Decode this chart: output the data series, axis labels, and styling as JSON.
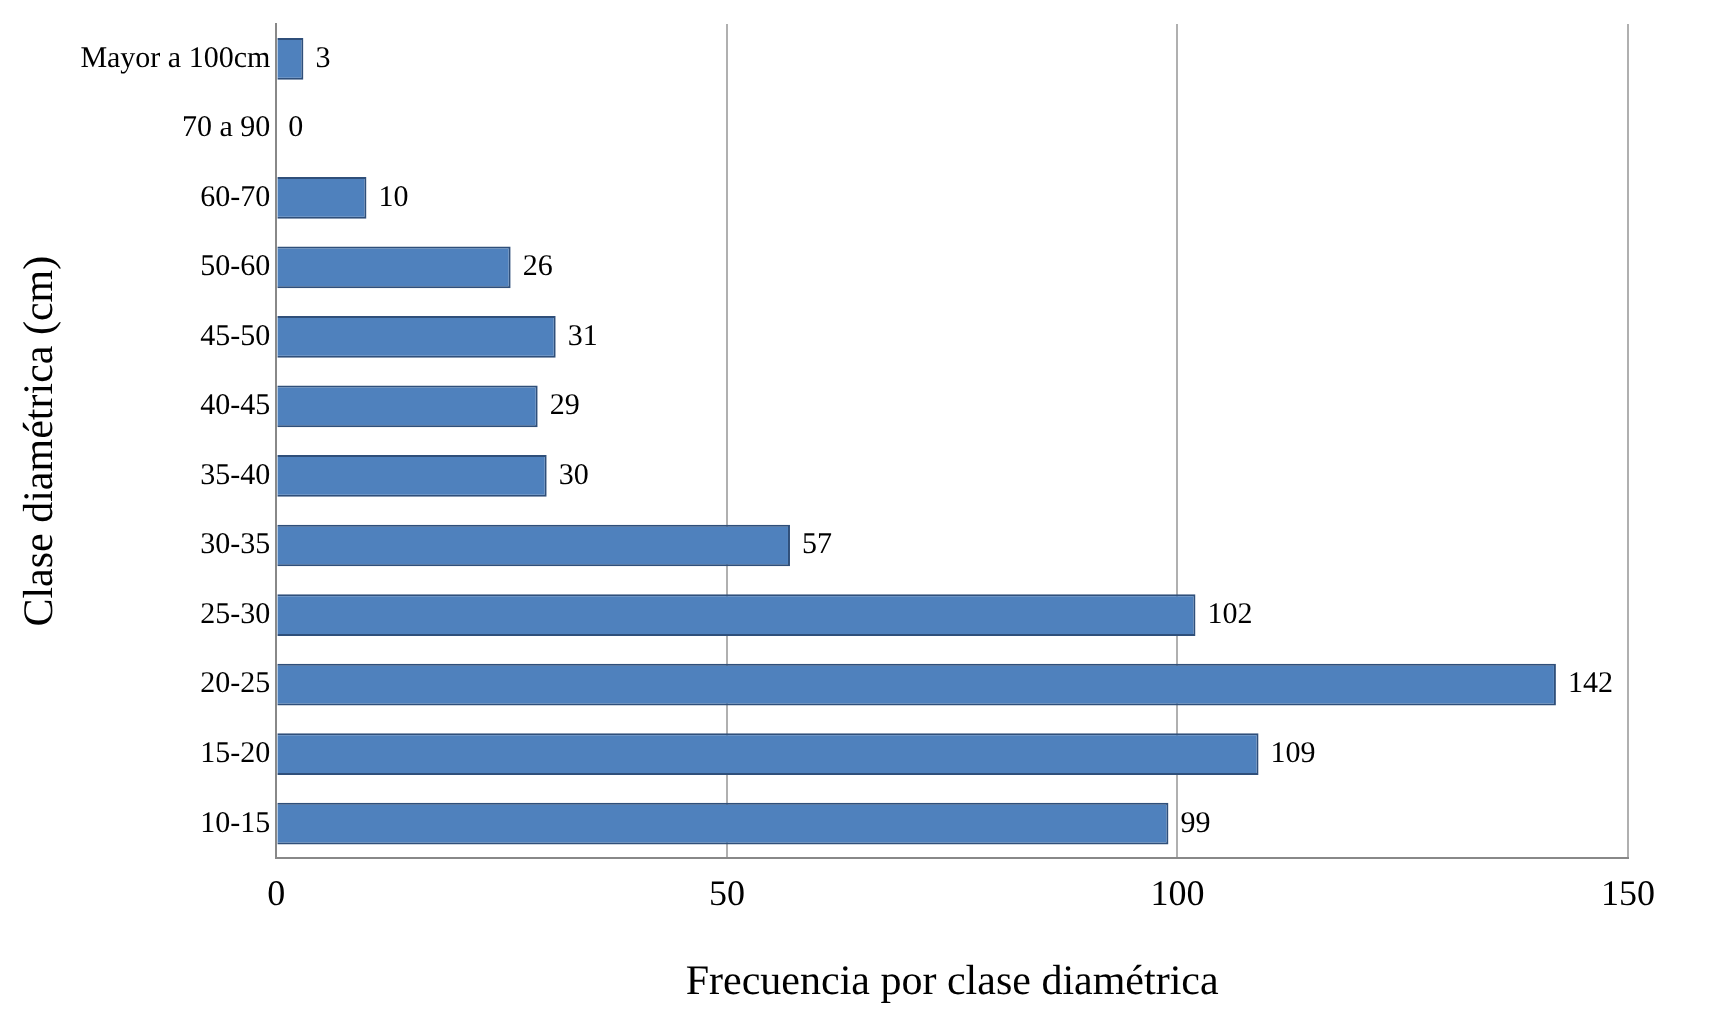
{
  "chart_data": {
    "type": "bar",
    "orientation": "horizontal",
    "xlabel": "Frecuencia por clase diamétrica",
    "ylabel": "Clase diamétrica (cm)",
    "categories": [
      "Mayor a 100cm",
      "70 a 90",
      "60-70",
      "50-60",
      "45-50",
      "40-45",
      "35-40",
      "30-35",
      "25-30",
      "20-25",
      "15-20",
      "10-15"
    ],
    "values": [
      3,
      0,
      10,
      26,
      31,
      29,
      30,
      57,
      102,
      142,
      109,
      99
    ],
    "color": "#4f81bd",
    "xlim": [
      0,
      150
    ],
    "xticks": [
      0,
      50,
      100,
      150
    ],
    "grid": "x",
    "data_labels": true
  }
}
